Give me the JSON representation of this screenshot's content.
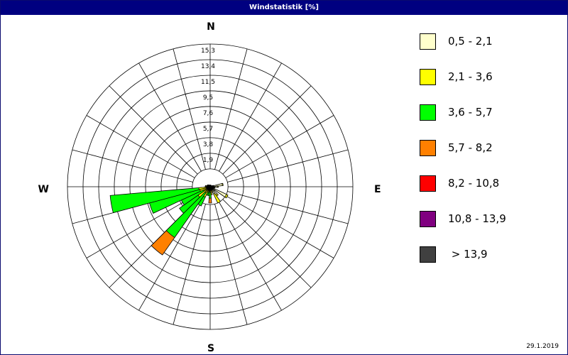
{
  "window": {
    "title": "Windstatistik [%]",
    "date": "29.1.2019"
  },
  "chart_data": {
    "type": "wind-rose",
    "title": "Windstatistik [%]",
    "unit": "%",
    "compass": {
      "n": "N",
      "e": "E",
      "s": "S",
      "w": "W"
    },
    "ring_labels": [
      "1,9",
      "3,8",
      "5,7",
      "7,6",
      "9,5",
      "11,5",
      "13,4",
      "15,3"
    ],
    "ring_max": 15.3,
    "sectors": 36,
    "speed_classes": [
      {
        "label": "0,5 - 2,1",
        "color": "#ffffcc"
      },
      {
        "label": "2,1 - 3,6",
        "color": "#ffff00"
      },
      {
        "label": "3,6 - 5,7",
        "color": "#00ff00"
      },
      {
        "label": "5,7 - 8,2",
        "color": "#ff8000"
      },
      {
        "label": "8,2 - 10,8",
        "color": "#ff0000"
      },
      {
        "label": "10,8 - 13,9",
        "color": "#800080"
      },
      {
        "label": " > 13,9",
        "color": "#404040"
      }
    ],
    "data": [
      {
        "direction": 0,
        "values": [
          0.2
        ]
      },
      {
        "direction": 10,
        "values": [
          0.2
        ]
      },
      {
        "direction": 20,
        "values": [
          0.2
        ]
      },
      {
        "direction": 30,
        "values": [
          0.2
        ]
      },
      {
        "direction": 40,
        "values": [
          0.2
        ]
      },
      {
        "direction": 50,
        "values": [
          0.2
        ]
      },
      {
        "direction": 60,
        "values": [
          0.2
        ]
      },
      {
        "direction": 70,
        "values": [
          0.3,
          0.1
        ]
      },
      {
        "direction": 80,
        "values": [
          1.5,
          0.1
        ]
      },
      {
        "direction": 90,
        "values": [
          0.9,
          0.1
        ]
      },
      {
        "direction": 100,
        "values": [
          0.5,
          0.1
        ]
      },
      {
        "direction": 110,
        "values": [
          0.5
        ]
      },
      {
        "direction": 120,
        "values": [
          2.2,
          0.2
        ]
      },
      {
        "direction": 130,
        "values": [
          0.6,
          0.1
        ]
      },
      {
        "direction": 140,
        "values": [
          1.2,
          0.2
        ]
      },
      {
        "direction": 150,
        "values": [
          1.0,
          1.2
        ]
      },
      {
        "direction": 160,
        "values": [
          0.3,
          0.4
        ]
      },
      {
        "direction": 170,
        "values": [
          0.4,
          0.6
        ]
      },
      {
        "direction": 180,
        "values": [
          0.3,
          0.4,
          0.7,
          0.6
        ]
      },
      {
        "direction": 190,
        "values": [
          0.2,
          0.3,
          0.6
        ]
      },
      {
        "direction": 200,
        "values": [
          0.3,
          0.4,
          0.4
        ]
      },
      {
        "direction": 210,
        "values": [
          0.4,
          1.0,
          1.2
        ]
      },
      {
        "direction": 220,
        "values": [
          0.3,
          0.6,
          6.7,
          2.6
        ]
      },
      {
        "direction": 230,
        "values": [
          0.6,
          1.2,
          2.8
        ]
      },
      {
        "direction": 240,
        "values": [
          0.4,
          0.5,
          3.0
        ]
      },
      {
        "direction": 250,
        "values": [
          0.4,
          0.9,
          6.4
        ]
      },
      {
        "direction": 260,
        "values": [
          0.5,
          0.9,
          10.9
        ]
      },
      {
        "direction": 270,
        "values": [
          0.4,
          0.2
        ]
      },
      {
        "direction": 280,
        "values": [
          0.4,
          0.2
        ]
      },
      {
        "direction": 290,
        "values": [
          0.3,
          0.1
        ]
      },
      {
        "direction": 300,
        "values": [
          0.3,
          0.1
        ]
      },
      {
        "direction": 310,
        "values": [
          0.3
        ]
      },
      {
        "direction": 320,
        "values": [
          0.3
        ]
      },
      {
        "direction": 330,
        "values": [
          0.2
        ]
      },
      {
        "direction": 340,
        "values": [
          0.2
        ]
      },
      {
        "direction": 350,
        "values": [
          0.2
        ]
      }
    ]
  }
}
